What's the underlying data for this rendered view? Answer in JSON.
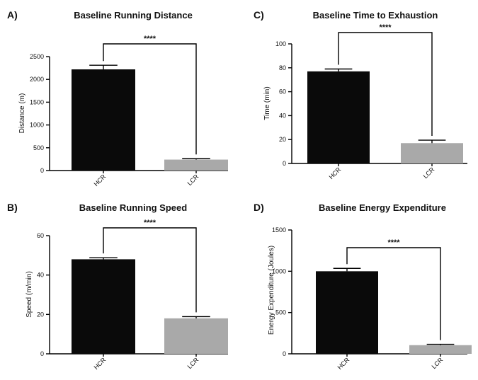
{
  "chart_data": [
    {
      "letter": "A)",
      "type": "bar",
      "title": "Baseline Running Distance",
      "xlabel": "",
      "ylabel": "Distance (m)",
      "categories": [
        "HCR",
        "LCR"
      ],
      "values": [
        2220,
        240
      ],
      "errors": [
        90,
        20
      ],
      "colors": [
        "#0a0a0a",
        "#a9a9a9"
      ],
      "ylim": [
        0,
        2500
      ],
      "yticks": [
        0,
        500,
        1000,
        1500,
        2000,
        2500
      ],
      "significance": "****"
    },
    {
      "letter": "B)",
      "type": "bar",
      "title": "Baseline Running Speed",
      "xlabel": "",
      "ylabel": "Speed (m/min)",
      "categories": [
        "HCR",
        "LCR"
      ],
      "values": [
        48,
        18
      ],
      "errors": [
        0.8,
        0.9
      ],
      "colors": [
        "#0a0a0a",
        "#a9a9a9"
      ],
      "ylim": [
        0,
        60
      ],
      "yticks": [
        0,
        20,
        40,
        60
      ],
      "significance": "****"
    },
    {
      "letter": "C)",
      "type": "bar",
      "title": "Baseline Time to Exhaustion",
      "xlabel": "",
      "ylabel": "Time (min)",
      "categories": [
        "HCR",
        "LCR"
      ],
      "values": [
        77,
        17
      ],
      "errors": [
        2,
        2.5
      ],
      "colors": [
        "#0a0a0a",
        "#a9a9a9"
      ],
      "ylim": [
        0,
        100
      ],
      "yticks": [
        0,
        20,
        40,
        60,
        80,
        100
      ],
      "significance": "****"
    },
    {
      "letter": "D)",
      "type": "bar",
      "title": "Baseline Energy Expenditure",
      "xlabel": "",
      "ylabel": "Energy Expenditure (Joules)",
      "categories": [
        "HCR",
        "LCR"
      ],
      "values": [
        1000,
        105
      ],
      "errors": [
        35,
        10
      ],
      "colors": [
        "#0a0a0a",
        "#a9a9a9"
      ],
      "ylim": [
        0,
        1500
      ],
      "yticks": [
        0,
        500,
        1000,
        1500
      ],
      "significance": "****"
    }
  ]
}
